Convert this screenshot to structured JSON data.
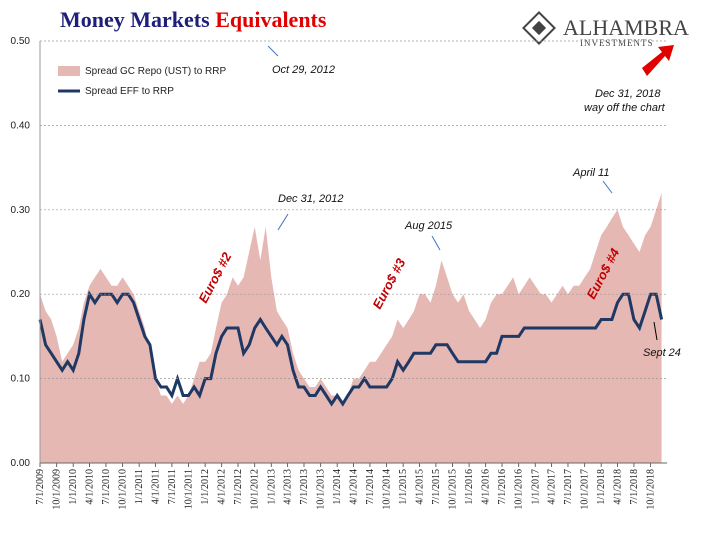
{
  "chart_data": {
    "type": "area-line",
    "title_parts": [
      "Money Markets",
      "Equivalents"
    ],
    "logo": [
      "ALHAMBRA",
      "INVESTMENTS"
    ],
    "x": [
      "2009-07-01",
      "2009-08-01",
      "2009-09-01",
      "2009-10-01",
      "2009-11-01",
      "2009-12-01",
      "2010-01-01",
      "2010-02-01",
      "2010-03-01",
      "2010-04-01",
      "2010-05-01",
      "2010-06-01",
      "2010-07-01",
      "2010-08-01",
      "2010-09-01",
      "2010-10-01",
      "2010-11-01",
      "2010-12-01",
      "2011-01-01",
      "2011-02-01",
      "2011-03-01",
      "2011-04-01",
      "2011-05-01",
      "2011-06-01",
      "2011-07-01",
      "2011-08-01",
      "2011-09-01",
      "2011-10-01",
      "2011-11-01",
      "2011-12-01",
      "2012-01-01",
      "2012-02-01",
      "2012-03-01",
      "2012-04-01",
      "2012-05-01",
      "2012-06-01",
      "2012-07-01",
      "2012-08-01",
      "2012-09-01",
      "2012-10-01",
      "2012-11-01",
      "2012-12-01",
      "2013-01-01",
      "2013-02-01",
      "2013-03-01",
      "2013-04-01",
      "2013-05-01",
      "2013-06-01",
      "2013-07-01",
      "2013-08-01",
      "2013-09-01",
      "2013-10-01",
      "2013-11-01",
      "2013-12-01",
      "2014-01-01",
      "2014-02-01",
      "2014-03-01",
      "2014-04-01",
      "2014-05-01",
      "2014-06-01",
      "2014-07-01",
      "2014-08-01",
      "2014-09-01",
      "2014-10-01",
      "2014-11-01",
      "2014-12-01",
      "2015-01-01",
      "2015-02-01",
      "2015-03-01",
      "2015-04-01",
      "2015-05-01",
      "2015-06-01",
      "2015-07-01",
      "2015-08-01",
      "2015-09-01",
      "2015-10-01",
      "2015-11-01",
      "2015-12-01",
      "2016-01-01",
      "2016-02-01",
      "2016-03-01",
      "2016-04-01",
      "2016-05-01",
      "2016-06-01",
      "2016-07-01",
      "2016-08-01",
      "2016-09-01",
      "2016-10-01",
      "2016-11-01",
      "2016-12-01",
      "2017-01-01",
      "2017-02-01",
      "2017-03-01",
      "2017-04-01",
      "2017-05-01",
      "2017-06-01",
      "2017-07-01",
      "2017-08-01",
      "2017-09-01",
      "2017-10-01",
      "2017-11-01",
      "2017-12-01",
      "2018-01-01",
      "2018-02-01",
      "2018-03-01",
      "2018-04-01",
      "2018-05-01",
      "2018-06-01",
      "2018-07-01",
      "2018-08-01",
      "2018-09-01",
      "2018-10-01",
      "2018-11-01",
      "2018-12-01"
    ],
    "series": [
      {
        "name": "Spread GC Repo (UST) to RRP",
        "color": "#e6b8b4",
        "kind": "area",
        "values": [
          0.2,
          0.18,
          0.17,
          0.15,
          0.12,
          0.13,
          0.14,
          0.16,
          0.19,
          0.21,
          0.22,
          0.23,
          0.22,
          0.21,
          0.21,
          0.22,
          0.21,
          0.2,
          0.18,
          0.16,
          0.13,
          0.1,
          0.08,
          0.08,
          0.07,
          0.08,
          0.07,
          0.08,
          0.1,
          0.12,
          0.12,
          0.13,
          0.16,
          0.19,
          0.2,
          0.22,
          0.21,
          0.22,
          0.25,
          0.28,
          0.24,
          0.28,
          0.22,
          0.18,
          0.17,
          0.16,
          0.13,
          0.11,
          0.1,
          0.09,
          0.09,
          0.1,
          0.09,
          0.08,
          0.08,
          0.07,
          0.08,
          0.1,
          0.1,
          0.11,
          0.12,
          0.12,
          0.13,
          0.14,
          0.15,
          0.17,
          0.16,
          0.17,
          0.18,
          0.2,
          0.2,
          0.19,
          0.21,
          0.24,
          0.22,
          0.2,
          0.19,
          0.2,
          0.18,
          0.17,
          0.16,
          0.17,
          0.19,
          0.2,
          0.2,
          0.21,
          0.22,
          0.2,
          0.21,
          0.22,
          0.21,
          0.2,
          0.2,
          0.19,
          0.2,
          0.21,
          0.2,
          0.21,
          0.21,
          0.22,
          0.23,
          0.25,
          0.27,
          0.28,
          0.29,
          0.3,
          0.28,
          0.27,
          0.26,
          0.25,
          0.27,
          0.28,
          0.3,
          0.32
        ]
      },
      {
        "name": "Spread EFF to RRP",
        "color": "#1f3864",
        "kind": "line",
        "values": [
          0.17,
          0.14,
          0.13,
          0.12,
          0.11,
          0.12,
          0.11,
          0.13,
          0.17,
          0.2,
          0.19,
          0.2,
          0.2,
          0.2,
          0.19,
          0.2,
          0.2,
          0.19,
          0.17,
          0.15,
          0.14,
          0.1,
          0.09,
          0.09,
          0.08,
          0.1,
          0.08,
          0.08,
          0.09,
          0.08,
          0.1,
          0.1,
          0.13,
          0.15,
          0.16,
          0.16,
          0.16,
          0.13,
          0.14,
          0.16,
          0.17,
          0.16,
          0.15,
          0.14,
          0.15,
          0.14,
          0.11,
          0.09,
          0.09,
          0.08,
          0.08,
          0.09,
          0.08,
          0.07,
          0.08,
          0.07,
          0.08,
          0.09,
          0.09,
          0.1,
          0.09,
          0.09,
          0.09,
          0.09,
          0.1,
          0.12,
          0.11,
          0.12,
          0.13,
          0.13,
          0.13,
          0.13,
          0.14,
          0.14,
          0.14,
          0.13,
          0.12,
          0.12,
          0.12,
          0.12,
          0.12,
          0.12,
          0.13,
          0.13,
          0.15,
          0.15,
          0.15,
          0.15,
          0.16,
          0.16,
          0.16,
          0.16,
          0.16,
          0.16,
          0.16,
          0.16,
          0.16,
          0.16,
          0.16,
          0.16,
          0.16,
          0.16,
          0.17,
          0.17,
          0.17,
          0.19,
          0.2,
          0.2,
          0.17,
          0.16,
          0.18,
          0.2,
          0.2,
          0.17
        ]
      }
    ],
    "xlim": [
      "2009-07-01",
      "2018-12-31"
    ],
    "xticks": [
      {
        "value": "2009-07-01",
        "label": "7/1/2009"
      },
      {
        "value": "2009-10-01",
        "label": "10/1/2009"
      },
      {
        "value": "2010-01-01",
        "label": "1/1/2010"
      },
      {
        "value": "2010-04-01",
        "label": "4/1/2010"
      },
      {
        "value": "2010-07-01",
        "label": "7/1/2010"
      },
      {
        "value": "2010-10-01",
        "label": "10/1/2010"
      },
      {
        "value": "2011-01-01",
        "label": "1/1/2011"
      },
      {
        "value": "2011-04-01",
        "label": "4/1/2011"
      },
      {
        "value": "2011-07-01",
        "label": "7/1/2011"
      },
      {
        "value": "2011-10-01",
        "label": "10/1/2011"
      },
      {
        "value": "2012-01-01",
        "label": "1/1/2012"
      },
      {
        "value": "2012-04-01",
        "label": "4/1/2012"
      },
      {
        "value": "2012-07-01",
        "label": "7/1/2012"
      },
      {
        "value": "2012-10-01",
        "label": "10/1/2012"
      },
      {
        "value": "2013-01-01",
        "label": "1/1/2013"
      },
      {
        "value": "2013-04-01",
        "label": "4/1/2013"
      },
      {
        "value": "2013-07-01",
        "label": "7/1/2013"
      },
      {
        "value": "2013-10-01",
        "label": "10/1/2013"
      },
      {
        "value": "2014-01-01",
        "label": "1/1/2014"
      },
      {
        "value": "2014-04-01",
        "label": "4/1/2014"
      },
      {
        "value": "2014-07-01",
        "label": "7/1/2014"
      },
      {
        "value": "2014-10-01",
        "label": "10/1/2014"
      },
      {
        "value": "2015-01-01",
        "label": "1/1/2015"
      },
      {
        "value": "2015-04-01",
        "label": "4/1/2015"
      },
      {
        "value": "2015-07-01",
        "label": "7/1/2015"
      },
      {
        "value": "2015-10-01",
        "label": "10/1/2015"
      },
      {
        "value": "2016-01-01",
        "label": "1/1/2016"
      },
      {
        "value": "2016-04-01",
        "label": "4/1/2016"
      },
      {
        "value": "2016-07-01",
        "label": "7/1/2016"
      },
      {
        "value": "2016-10-01",
        "label": "10/1/2016"
      },
      {
        "value": "2017-01-01",
        "label": "1/1/2017"
      },
      {
        "value": "2017-04-01",
        "label": "4/1/2017"
      },
      {
        "value": "2017-07-01",
        "label": "7/1/2017"
      },
      {
        "value": "2017-10-01",
        "label": "10/1/2017"
      },
      {
        "value": "2018-01-01",
        "label": "1/1/2018"
      },
      {
        "value": "2018-04-01",
        "label": "4/1/2018"
      },
      {
        "value": "2018-07-01",
        "label": "7/1/2018"
      },
      {
        "value": "2018-10-01",
        "label": "10/1/2018"
      }
    ],
    "ylim": [
      0,
      0.5
    ],
    "yticks": [
      {
        "value": 0,
        "label": "0.00"
      },
      {
        "value": 0.1,
        "label": "0.10"
      },
      {
        "value": 0.2,
        "label": "0.20"
      },
      {
        "value": 0.3,
        "label": "0.30"
      },
      {
        "value": 0.4,
        "label": "0.40"
      },
      {
        "value": 0.5,
        "label": "0.50"
      }
    ],
    "grid": true,
    "annotations": [
      "Oct 29, 2012",
      "Dec 31, 2012",
      "Aug 2015",
      "April 11",
      "Dec 31, 2018",
      "way off the chart",
      "Sept 24"
    ],
    "episodes": [
      "Euro$ #2",
      "Euro$ #3",
      "Euro$ #4"
    ]
  }
}
